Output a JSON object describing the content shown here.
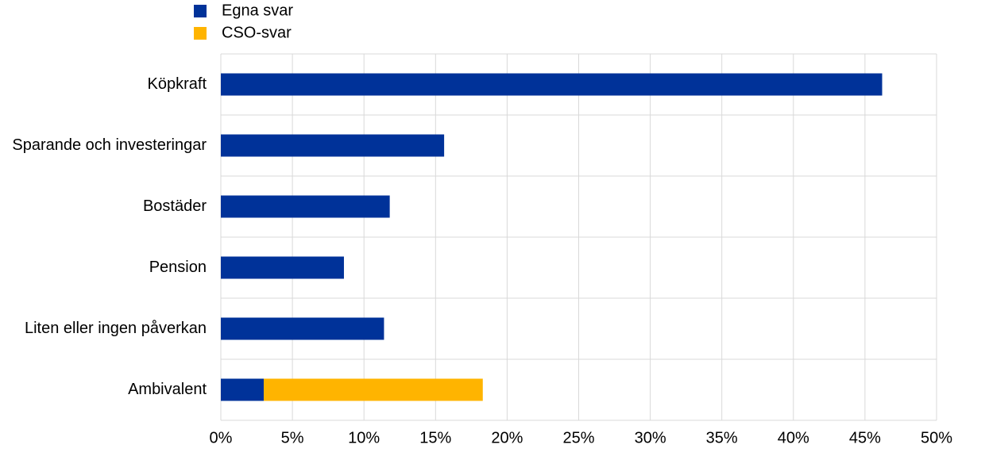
{
  "chart_data": {
    "type": "bar",
    "orientation": "horizontal",
    "stacked": true,
    "categories": [
      "Köpkraft",
      "Sparande och investeringar",
      "Bostäder",
      "Pension",
      "Liten eller ingen påverkan",
      "Ambivalent"
    ],
    "series": [
      {
        "name": "Egna svar",
        "color": "#003299",
        "values": [
          46.2,
          15.6,
          11.8,
          8.6,
          11.4,
          3.0
        ]
      },
      {
        "name": "CSO-svar",
        "color": "#ffb400",
        "values": [
          null,
          null,
          null,
          null,
          null,
          15.3
        ]
      }
    ],
    "xlim": [
      0,
      50
    ],
    "xticks": [
      {
        "value": 0,
        "label": "0%"
      },
      {
        "value": 5,
        "label": "5%"
      },
      {
        "value": 10,
        "label": "10%"
      },
      {
        "value": 15,
        "label": "15%"
      },
      {
        "value": 20,
        "label": "20%"
      },
      {
        "value": 25,
        "label": "25%"
      },
      {
        "value": 30,
        "label": "30%"
      },
      {
        "value": 35,
        "label": "35%"
      },
      {
        "value": 40,
        "label": "40%"
      },
      {
        "value": 45,
        "label": "45%"
      },
      {
        "value": 50,
        "label": "50%"
      }
    ],
    "grid": true,
    "legend": "top-left"
  }
}
